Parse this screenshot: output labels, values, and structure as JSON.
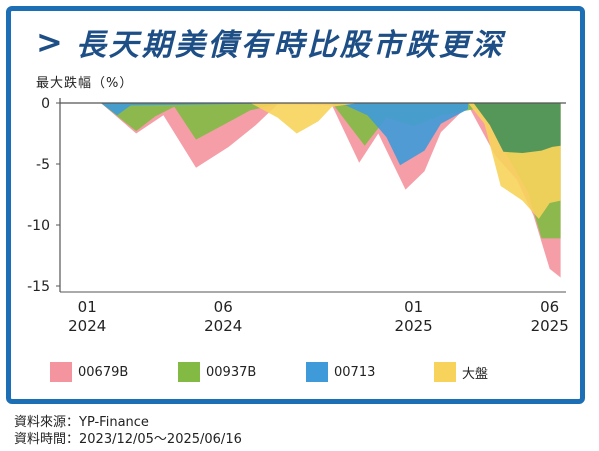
{
  "title": "長天期美債有時比股市跌更深",
  "ylabel": "最大跌幅（%）",
  "source_line": "資料來源：YP-Finance",
  "period_line": "資料時間：2023/12/05～2025/06/16",
  "chart_data": {
    "type": "area",
    "ylim": [
      -15,
      0
    ],
    "yticks": [
      0,
      -5,
      -10,
      -15
    ],
    "xlim": [
      0,
      18.6
    ],
    "xticks": [
      {
        "x": 1,
        "month": "01",
        "year": "2024"
      },
      {
        "x": 6,
        "month": "06",
        "year": "2024"
      },
      {
        "x": 13,
        "month": "01",
        "year": "2025"
      },
      {
        "x": 18,
        "month": "06",
        "year": "2025"
      }
    ],
    "grid": false,
    "legend_position": "bottom",
    "series": [
      {
        "name": "00679B",
        "color": "#f4949f",
        "points": [
          [
            0,
            0
          ],
          [
            1.5,
            0
          ],
          [
            2.8,
            -2.5
          ],
          [
            3.8,
            -1
          ],
          [
            5,
            -5.3
          ],
          [
            6.2,
            -3.6
          ],
          [
            7.2,
            -1.8
          ],
          [
            8,
            -0.1
          ],
          [
            10,
            -0.2
          ],
          [
            11,
            -4.9
          ],
          [
            11.7,
            -2.5
          ],
          [
            12.7,
            -7.1
          ],
          [
            13.4,
            -5.6
          ],
          [
            14,
            -2.4
          ],
          [
            15,
            -0.2
          ],
          [
            16,
            -4.3
          ],
          [
            16.8,
            -6.3
          ],
          [
            17.4,
            -9.2
          ],
          [
            18,
            -13.6
          ],
          [
            18.4,
            -14.3
          ]
        ]
      },
      {
        "name": "00937B",
        "color": "#82ba43",
        "points": [
          [
            0,
            0
          ],
          [
            1.5,
            0
          ],
          [
            2.8,
            -2.3
          ],
          [
            3.5,
            -1.1
          ],
          [
            4.2,
            -0.3
          ],
          [
            5,
            -3
          ],
          [
            6,
            -1.8
          ],
          [
            7,
            -0.6
          ],
          [
            8,
            -0.1
          ],
          [
            10,
            0
          ],
          [
            11.2,
            -3.5
          ],
          [
            12,
            -1.2
          ],
          [
            13,
            -1.9
          ],
          [
            14,
            -1
          ],
          [
            15.5,
            -0.4
          ],
          [
            16.3,
            -3.8
          ],
          [
            17.2,
            -7.3
          ],
          [
            17.7,
            -11.1
          ],
          [
            18.4,
            -11.1
          ]
        ]
      },
      {
        "name": "00713",
        "color": "#3f9ad9",
        "points": [
          [
            0,
            0
          ],
          [
            1.5,
            0
          ],
          [
            2.1,
            -1
          ],
          [
            2.6,
            -0.2
          ],
          [
            9.5,
            0
          ],
          [
            10.5,
            -0.2
          ],
          [
            11.3,
            -1
          ],
          [
            12,
            -2.8
          ],
          [
            12.5,
            -5.1
          ],
          [
            13.4,
            -3.9
          ],
          [
            14,
            -1.7
          ],
          [
            14.5,
            -1.1
          ],
          [
            15,
            -0.5
          ]
        ]
      },
      {
        "name": "大盤",
        "color": "#f7d35b",
        "points": [
          [
            0,
            0
          ],
          [
            7,
            0
          ],
          [
            8,
            -1.2
          ],
          [
            8.7,
            -2.5
          ],
          [
            9.5,
            -1.5
          ],
          [
            10,
            -0.3
          ],
          [
            11,
            0
          ],
          [
            15,
            0
          ],
          [
            15.6,
            -1.7
          ],
          [
            16.2,
            -6.8
          ],
          [
            17,
            -8
          ],
          [
            17.6,
            -9.5
          ],
          [
            18,
            -8.2
          ],
          [
            18.4,
            -8
          ]
        ]
      }
    ],
    "overlay": {
      "color": "#4c9459",
      "points": [
        [
          0,
          0
        ],
        [
          15.2,
          0
        ],
        [
          15.8,
          -1.8
        ],
        [
          16.3,
          -4
        ],
        [
          17,
          -4.1
        ],
        [
          17.7,
          -3.9
        ],
        [
          18.1,
          -3.6
        ],
        [
          18.4,
          -3.5
        ]
      ]
    }
  }
}
